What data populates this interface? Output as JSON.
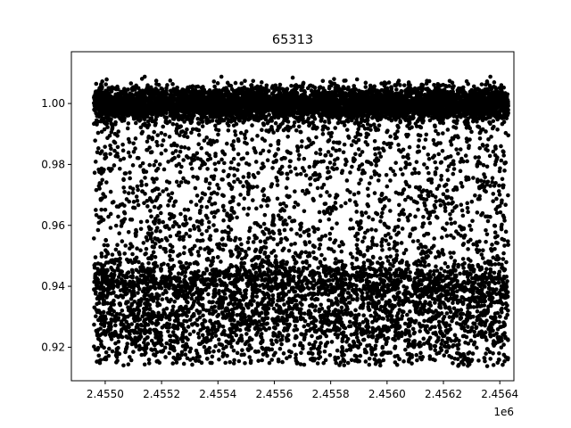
{
  "chart_data": {
    "type": "scatter",
    "title": "65313",
    "xlabel": "",
    "ylabel": "",
    "x_offset_label": "1e6",
    "xlim": [
      2.45488,
      2.45645
    ],
    "ylim": [
      0.909,
      1.017
    ],
    "x_range": [
      2.45496,
      2.45643
    ],
    "x_ticks": [
      2.455,
      2.4552,
      2.4554,
      2.4556,
      2.4558,
      2.456,
      2.4562,
      2.4564
    ],
    "x_tick_labels": [
      "2.4550",
      "2.4552",
      "2.4554",
      "2.4556",
      "2.4558",
      "2.4560",
      "2.4562",
      "2.4564"
    ],
    "y_ticks": [
      0.92,
      0.94,
      0.96,
      0.98,
      1.0
    ],
    "y_tick_labels": [
      "0.92",
      "0.94",
      "0.96",
      "0.98",
      "1.00"
    ],
    "band": {
      "center": 1.0,
      "half_width": 0.007
    },
    "scatter_range": [
      0.914,
      0.999
    ],
    "cluster_levels": [
      0.941,
      0.93,
      0.922
    ],
    "marker_color": "#000000",
    "grid": false,
    "legend": "none"
  }
}
